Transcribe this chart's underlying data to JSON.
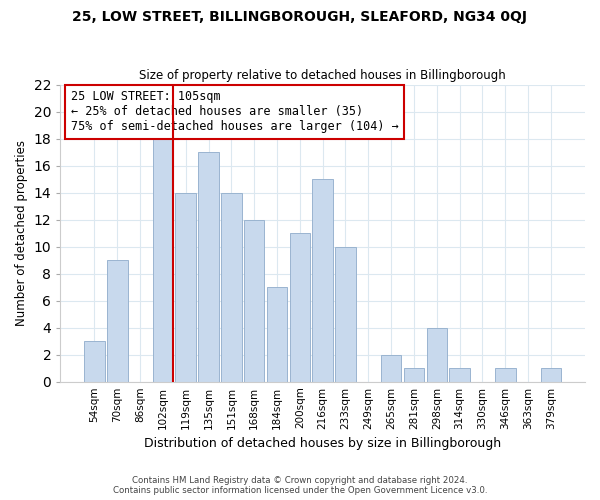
{
  "title": "25, LOW STREET, BILLINGBOROUGH, SLEAFORD, NG34 0QJ",
  "subtitle": "Size of property relative to detached houses in Billingborough",
  "xlabel": "Distribution of detached houses by size in Billingborough",
  "ylabel": "Number of detached properties",
  "categories": [
    "54sqm",
    "70sqm",
    "86sqm",
    "102sqm",
    "119sqm",
    "135sqm",
    "151sqm",
    "168sqm",
    "184sqm",
    "200sqm",
    "216sqm",
    "233sqm",
    "249sqm",
    "265sqm",
    "281sqm",
    "298sqm",
    "314sqm",
    "330sqm",
    "346sqm",
    "363sqm",
    "379sqm"
  ],
  "values": [
    3,
    9,
    0,
    18,
    14,
    17,
    14,
    12,
    7,
    11,
    15,
    10,
    0,
    2,
    1,
    4,
    1,
    0,
    1,
    0,
    1
  ],
  "bar_color": "#c8d9ed",
  "bar_edge_color": "#9ab4d0",
  "vline_x_index": 3,
  "vline_color": "#cc0000",
  "annotation_text": "25 LOW STREET: 105sqm\n← 25% of detached houses are smaller (35)\n75% of semi-detached houses are larger (104) →",
  "annotation_box_color": "#ffffff",
  "annotation_box_edge_color": "#cc0000",
  "footnote_line1": "Contains HM Land Registry data © Crown copyright and database right 2024.",
  "footnote_line2": "Contains public sector information licensed under the Open Government Licence v3.0.",
  "bg_color": "#ffffff",
  "grid_color": "#dce8f0",
  "ylim": [
    0,
    22
  ],
  "yticks": [
    0,
    2,
    4,
    6,
    8,
    10,
    12,
    14,
    16,
    18,
    20,
    22
  ]
}
